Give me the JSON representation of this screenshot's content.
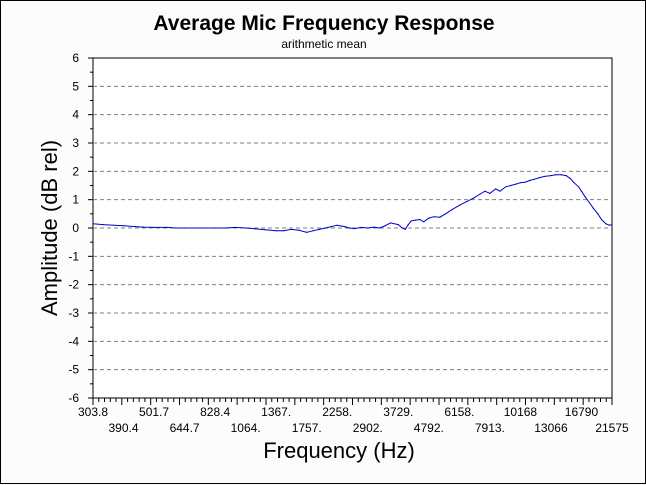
{
  "chart_data": {
    "type": "line",
    "title": "Average Mic Frequency Response",
    "subtitle": "arithmetic mean",
    "xlabel": "Frequency (Hz)",
    "ylabel": "Amplitude (dB rel)",
    "xscale": "log",
    "xlim": [
      303.8,
      21575
    ],
    "ylim": [
      -6,
      6
    ],
    "grid": "horizontal dashed",
    "y_ticks": [
      "6",
      "5",
      "4",
      "3",
      "2",
      "1",
      "0",
      "-1",
      "-2",
      "-3",
      "-4",
      "-5",
      "-6"
    ],
    "x_tick_labels_row1": [
      "303.8",
      "501.7",
      "828.4",
      "1367.",
      "2258.",
      "3729.",
      "6158.",
      "10168",
      "16790"
    ],
    "x_tick_labels_row2": [
      "390.4",
      "644.7",
      "1064.",
      "1757.",
      "2902.",
      "4792.",
      "7913.",
      "13066",
      "21575"
    ],
    "series_color": "#0000cc",
    "x": [
      303.8,
      330,
      360,
      390.4,
      430,
      460,
      501.7,
      560,
      600,
      644.7,
      700,
      760,
      828.4,
      900,
      980,
      1064,
      1150,
      1250,
      1367,
      1450,
      1550,
      1650,
      1757,
      1850,
      1950,
      2050,
      2150,
      2258,
      2400,
      2500,
      2600,
      2750,
      2902,
      3050,
      3200,
      3350,
      3500,
      3729,
      3850,
      3950,
      4050,
      4150,
      4300,
      4450,
      4600,
      4792,
      5000,
      5250,
      5500,
      5800,
      6158,
      6500,
      6900,
      7300,
      7600,
      7913,
      8300,
      8600,
      9000,
      9400,
      9800,
      10168,
      10600,
      11000,
      11400,
      11900,
      12400,
      13066,
      13600,
      14200,
      14800,
      15300,
      15800,
      16400,
      16790,
      17300,
      17900,
      18500,
      19200,
      19800,
      20500,
      21100,
      21575
    ],
    "y": [
      0.15,
      0.12,
      0.1,
      0.08,
      0.05,
      0.03,
      0.02,
      0.02,
      0.0,
      0.0,
      0.0,
      0.0,
      0.0,
      0.0,
      0.02,
      0.0,
      -0.03,
      -0.06,
      -0.1,
      -0.1,
      -0.05,
      -0.08,
      -0.15,
      -0.1,
      -0.05,
      0.0,
      0.05,
      0.1,
      0.05,
      0.0,
      -0.02,
      0.02,
      0.0,
      0.03,
      0.0,
      0.08,
      0.18,
      0.12,
      0.0,
      -0.05,
      0.12,
      0.25,
      0.28,
      0.3,
      0.22,
      0.35,
      0.4,
      0.38,
      0.5,
      0.65,
      0.8,
      0.92,
      1.05,
      1.2,
      1.3,
      1.22,
      1.38,
      1.3,
      1.45,
      1.5,
      1.55,
      1.6,
      1.62,
      1.68,
      1.72,
      1.78,
      1.82,
      1.85,
      1.88,
      1.88,
      1.85,
      1.75,
      1.6,
      1.45,
      1.3,
      1.1,
      0.9,
      0.7,
      0.5,
      0.3,
      0.15,
      0.1,
      0.12
    ]
  }
}
